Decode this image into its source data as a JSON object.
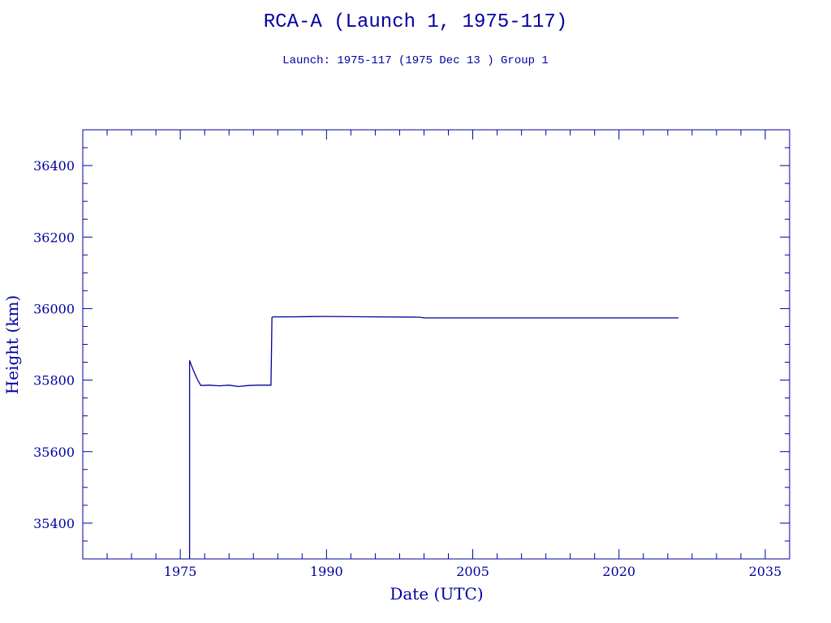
{
  "chart_data": {
    "type": "line",
    "title": "RCA-A (Launch 1, 1975-117)",
    "subtitle": "Launch: 1975-117  (1975 Dec 13 )  Group 1",
    "xlabel": "Date (UTC)",
    "ylabel": "Height (km)",
    "xlim": [
      1965,
      2037.5
    ],
    "ylim": [
      35300,
      36500
    ],
    "xticks": [
      1975,
      1990,
      2005,
      2020,
      2035
    ],
    "yticks": [
      35400,
      35600,
      35800,
      36000,
      36200,
      36400
    ],
    "grid": false,
    "color": "#0000a0",
    "series": [
      {
        "x": [
          1975.95,
          1975.95,
          1976.3,
          1976.7,
          1977.1,
          1978,
          1979,
          1980,
          1981,
          1982,
          1983,
          1984.3,
          1984.35,
          1984.4,
          1984.5,
          1986,
          1990,
          1995,
          1999.5,
          2000,
          2005,
          2010,
          2015,
          2020,
          2026.1
        ],
        "y": [
          35300,
          35855,
          35830,
          35805,
          35785,
          35786,
          35784,
          35786,
          35782,
          35785,
          35786,
          35786,
          35870,
          35975,
          35977,
          35977,
          35978,
          35977,
          35976,
          35974,
          35974,
          35974,
          35974,
          35974,
          35974
        ]
      }
    ]
  }
}
